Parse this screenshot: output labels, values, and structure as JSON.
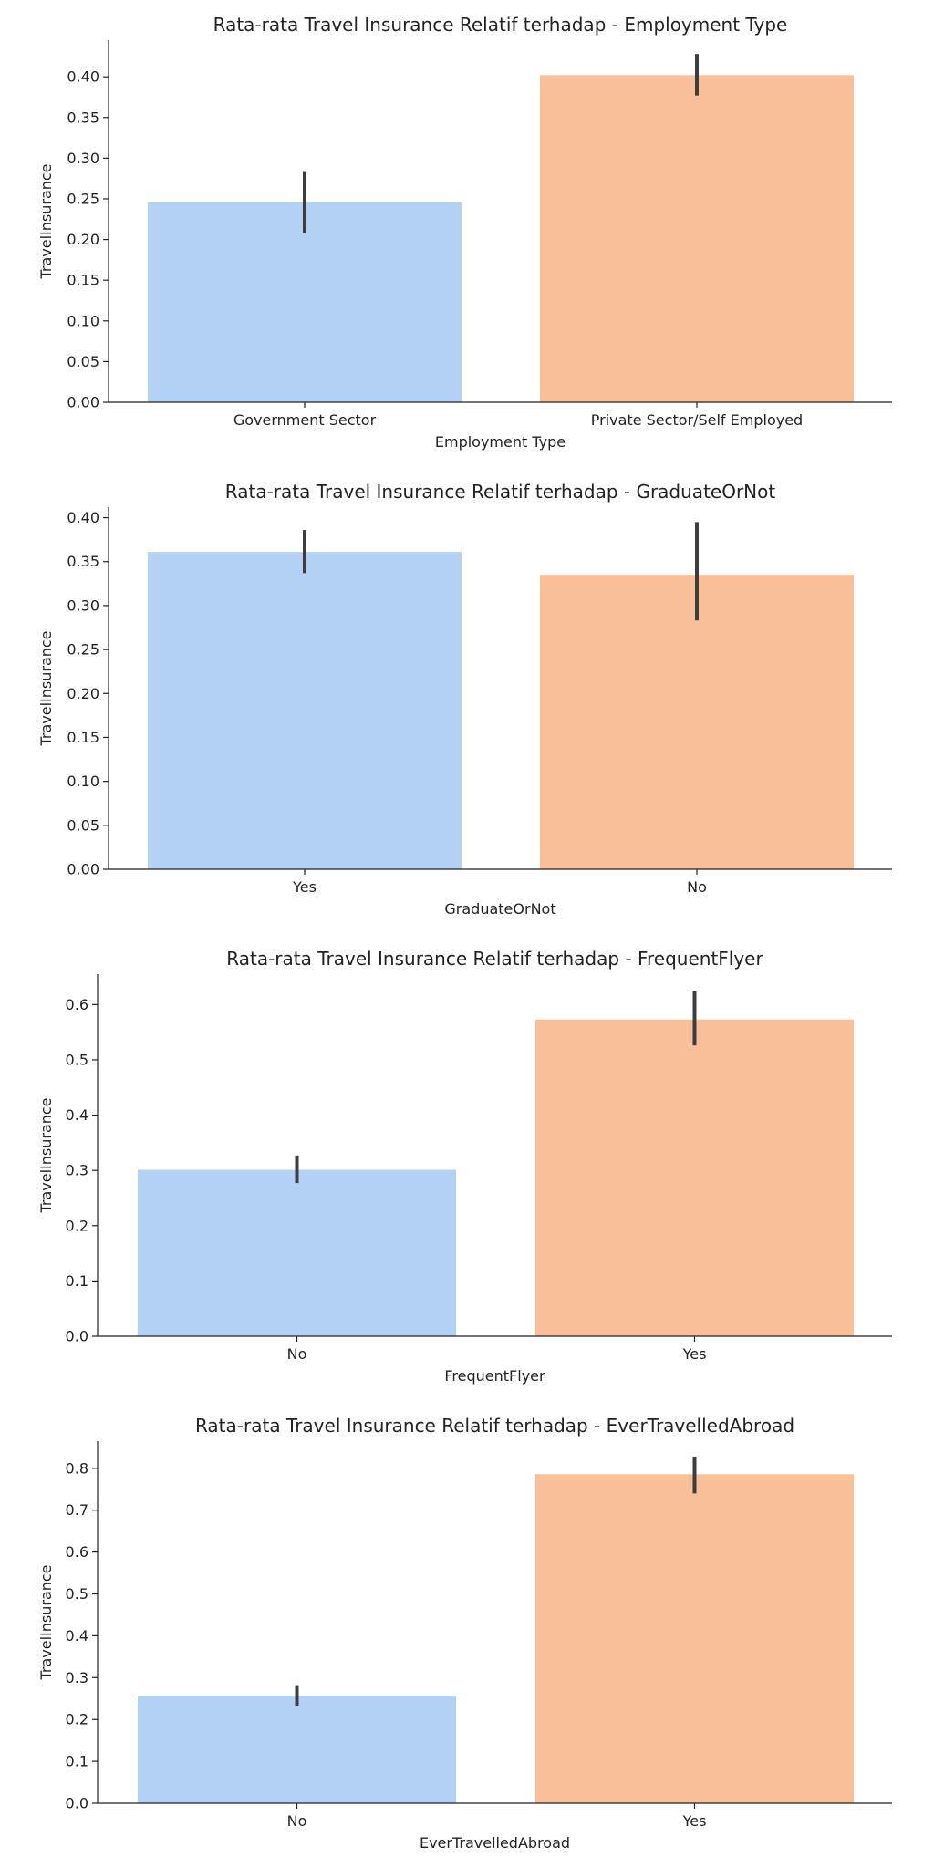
{
  "colors": {
    "bar_1": "#b3d1f5",
    "bar_2": "#f8bf99",
    "error_bar": "#3d3d3d",
    "axis": "#222222"
  },
  "chart_data": [
    {
      "type": "bar",
      "title": "Rata-rata Travel Insurance Relatif terhadap - Employment Type",
      "xlabel": "Employment Type",
      "ylabel": "TravelInsurance",
      "categories": [
        "Government Sector",
        "Private Sector/Self Employed"
      ],
      "values": [
        0.246,
        0.402
      ],
      "errors": [
        [
          0.208,
          0.283
        ],
        [
          0.377,
          0.428
        ]
      ],
      "ylim": [
        0,
        0.445
      ],
      "yticks": [
        0.0,
        0.05,
        0.1,
        0.15,
        0.2,
        0.25,
        0.3,
        0.35,
        0.4
      ],
      "ytick_labels": [
        "0.00",
        "0.05",
        "0.10",
        "0.15",
        "0.20",
        "0.25",
        "0.30",
        "0.35",
        "0.40"
      ]
    },
    {
      "type": "bar",
      "title": "Rata-rata Travel Insurance Relatif terhadap - GraduateOrNot",
      "xlabel": "GraduateOrNot",
      "ylabel": "TravelInsurance",
      "categories": [
        "Yes",
        "No"
      ],
      "values": [
        0.361,
        0.335
      ],
      "errors": [
        [
          0.337,
          0.386
        ],
        [
          0.283,
          0.395
        ]
      ],
      "ylim": [
        0,
        0.412
      ],
      "yticks": [
        0.0,
        0.05,
        0.1,
        0.15,
        0.2,
        0.25,
        0.3,
        0.35,
        0.4
      ],
      "ytick_labels": [
        "0.00",
        "0.05",
        "0.10",
        "0.15",
        "0.20",
        "0.25",
        "0.30",
        "0.35",
        "0.40"
      ]
    },
    {
      "type": "bar",
      "title": "Rata-rata Travel Insurance Relatif terhadap - FrequentFlyer",
      "xlabel": "FrequentFlyer",
      "ylabel": "TravelInsurance",
      "categories": [
        "No",
        "Yes"
      ],
      "values": [
        0.301,
        0.573
      ],
      "errors": [
        [
          0.277,
          0.327
        ],
        [
          0.526,
          0.624
        ]
      ],
      "ylim": [
        0,
        0.655
      ],
      "yticks": [
        0.0,
        0.1,
        0.2,
        0.3,
        0.4,
        0.5,
        0.6
      ],
      "ytick_labels": [
        "0.0",
        "0.1",
        "0.2",
        "0.3",
        "0.4",
        "0.5",
        "0.6"
      ]
    },
    {
      "type": "bar",
      "title": "Rata-rata Travel Insurance Relatif terhadap - EverTravelledAbroad",
      "xlabel": "EverTravelledAbroad",
      "ylabel": "TravelInsurance",
      "categories": [
        "No",
        "Yes"
      ],
      "values": [
        0.257,
        0.786
      ],
      "errors": [
        [
          0.233,
          0.282
        ],
        [
          0.74,
          0.828
        ]
      ],
      "ylim": [
        0,
        0.865
      ],
      "yticks": [
        0.0,
        0.1,
        0.2,
        0.3,
        0.4,
        0.5,
        0.6,
        0.7,
        0.8
      ],
      "ytick_labels": [
        "0.0",
        "0.1",
        "0.2",
        "0.3",
        "0.4",
        "0.5",
        "0.6",
        "0.7",
        "0.8"
      ]
    }
  ]
}
